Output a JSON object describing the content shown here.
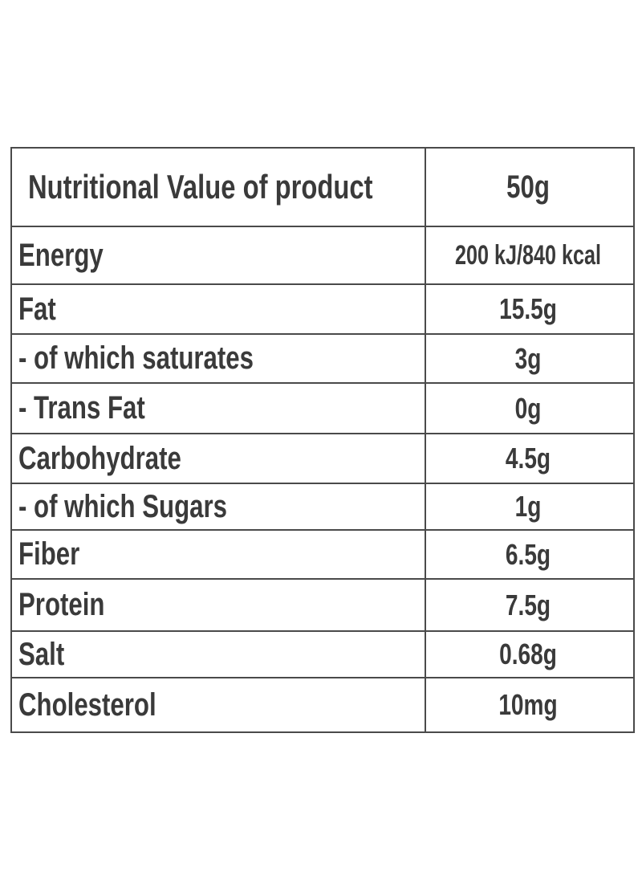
{
  "table": {
    "header": {
      "label": "Nutritional Value of product",
      "value": "50g"
    },
    "rows": [
      {
        "label": "Energy",
        "value": "200 kJ/840 kcal"
      },
      {
        "label": "Fat",
        "value": "15.5g"
      },
      {
        "label": "- of which saturates",
        "value": "3g"
      },
      {
        "label": "- Trans Fat",
        "value": "0g"
      },
      {
        "label": "Carbohydrate",
        "value": "4.5g"
      },
      {
        "label": "- of which Sugars",
        "value": "1g"
      },
      {
        "label": "Fiber",
        "value": "6.5g"
      },
      {
        "label": "Protein",
        "value": "7.5g"
      },
      {
        "label": "Salt",
        "value": "0.68g"
      },
      {
        "label": "Cholesterol",
        "value": "10mg"
      }
    ]
  }
}
